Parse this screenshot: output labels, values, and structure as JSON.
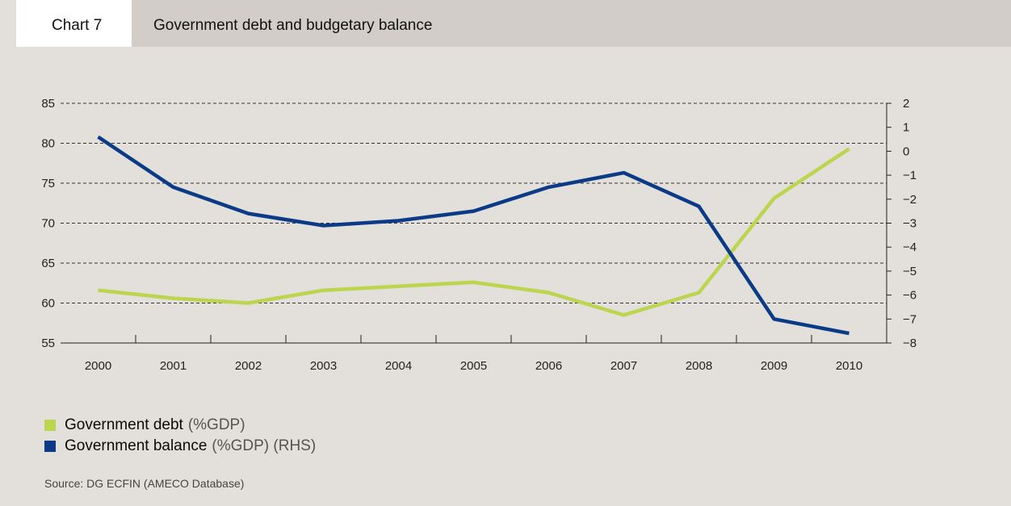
{
  "header": {
    "chart_number": "Chart 7",
    "title": "Government debt and budgetary balance"
  },
  "legend": [
    {
      "name": "Government debt",
      "suffix": "(%GDP)",
      "color": "#bcd54f"
    },
    {
      "name": "Government balance",
      "suffix": "(%GDP) (RHS)",
      "color": "#0b3b86"
    }
  ],
  "source": "Source: DG ECFIN (AMECO Database)",
  "chart_data": {
    "type": "line",
    "x": [
      "2000",
      "2001",
      "2002",
      "2003",
      "2004",
      "2005",
      "2006",
      "2007",
      "2008",
      "2009",
      "2010"
    ],
    "series": [
      {
        "name": "Government debt",
        "axis": "left",
        "color": "#bcd54f",
        "values": [
          61.6,
          60.6,
          60.0,
          61.6,
          62.1,
          62.6,
          61.3,
          58.5,
          61.3,
          73.1,
          79.3
        ]
      },
      {
        "name": "Government balance",
        "axis": "right",
        "color": "#0b3b86",
        "values": [
          0.6,
          -1.5,
          -2.6,
          -3.1,
          -2.9,
          -2.5,
          -1.5,
          -0.9,
          -2.3,
          -7.0,
          -7.6
        ]
      }
    ],
    "y_left": {
      "min": 55,
      "max": 85,
      "ticks": [
        "85",
        "80",
        "75",
        "70",
        "65",
        "60",
        "55"
      ]
    },
    "y_right": {
      "min": -8,
      "max": 2,
      "ticks": [
        "2",
        "1",
        "0",
        "-1",
        "-2",
        "-3",
        "-4",
        "-5",
        "-6",
        "-7",
        "-8"
      ]
    },
    "grid": true
  }
}
